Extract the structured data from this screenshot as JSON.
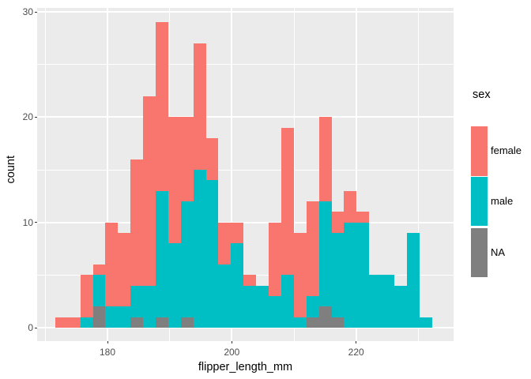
{
  "figure": {
    "background": "#FFFFFF",
    "panel_background": "#EBEBEB",
    "gridline_color": "#FFFFFF",
    "axis_text_color": "#4D4D4D",
    "axis_title_color": "#000000"
  },
  "legend": {
    "title": "sex",
    "entries": [
      {
        "label": "female",
        "color": "#F8766D"
      },
      {
        "label": "male",
        "color": "#00BFC4"
      },
      {
        "label": "NA",
        "color": "#7F7F7F"
      }
    ]
  },
  "chart_data": {
    "type": "bar",
    "subtype": "stacked-histogram",
    "title": "",
    "xlabel": "flipper_length_mm",
    "ylabel": "count",
    "bin_start_mm": 171.6,
    "binwidth_mm": 2.02,
    "x_axis": {
      "ticks": [
        180,
        200,
        220
      ],
      "minor_ticks": [
        170,
        190,
        210,
        230
      ],
      "range_mm": [
        168.7,
        235.7
      ]
    },
    "y_axis": {
      "ticks": [
        0,
        10,
        20,
        30
      ],
      "minor_ticks": [
        5,
        15,
        25
      ],
      "range": [
        -1.25,
        30.4
      ]
    },
    "stack_order_bottom_to_top": [
      "NA",
      "male",
      "female"
    ],
    "series": [
      {
        "name": "female",
        "color": "#F8766D",
        "counts": [
          1,
          1,
          4,
          1,
          8,
          7,
          12,
          18,
          16,
          12,
          8,
          12,
          4,
          4,
          2,
          1,
          0,
          7,
          14,
          8,
          9,
          8,
          2,
          3,
          1,
          0,
          0,
          0,
          0,
          0
        ]
      },
      {
        "name": "male",
        "color": "#00BFC4",
        "counts": [
          0,
          0,
          1,
          3,
          2,
          2,
          3,
          4,
          12,
          8,
          11,
          15,
          14,
          6,
          8,
          4,
          4,
          3,
          5,
          1,
          2,
          10,
          8,
          10,
          10,
          5,
          5,
          4,
          9,
          1
        ]
      },
      {
        "name": "NA",
        "color": "#7F7F7F",
        "counts": [
          0,
          0,
          0,
          2,
          0,
          0,
          1,
          0,
          1,
          0,
          1,
          0,
          0,
          0,
          0,
          0,
          0,
          0,
          0,
          0,
          1,
          2,
          1,
          0,
          0,
          0,
          0,
          0,
          0,
          0
        ]
      }
    ],
    "bin_totals": [
      1,
      1,
      5,
      6,
      10,
      9,
      16,
      22,
      29,
      20,
      20,
      27,
      18,
      10,
      10,
      5,
      4,
      10,
      19,
      9,
      12,
      20,
      11,
      13,
      11,
      5,
      5,
      4,
      9,
      1
    ],
    "legend_position": "right",
    "grid": true
  }
}
